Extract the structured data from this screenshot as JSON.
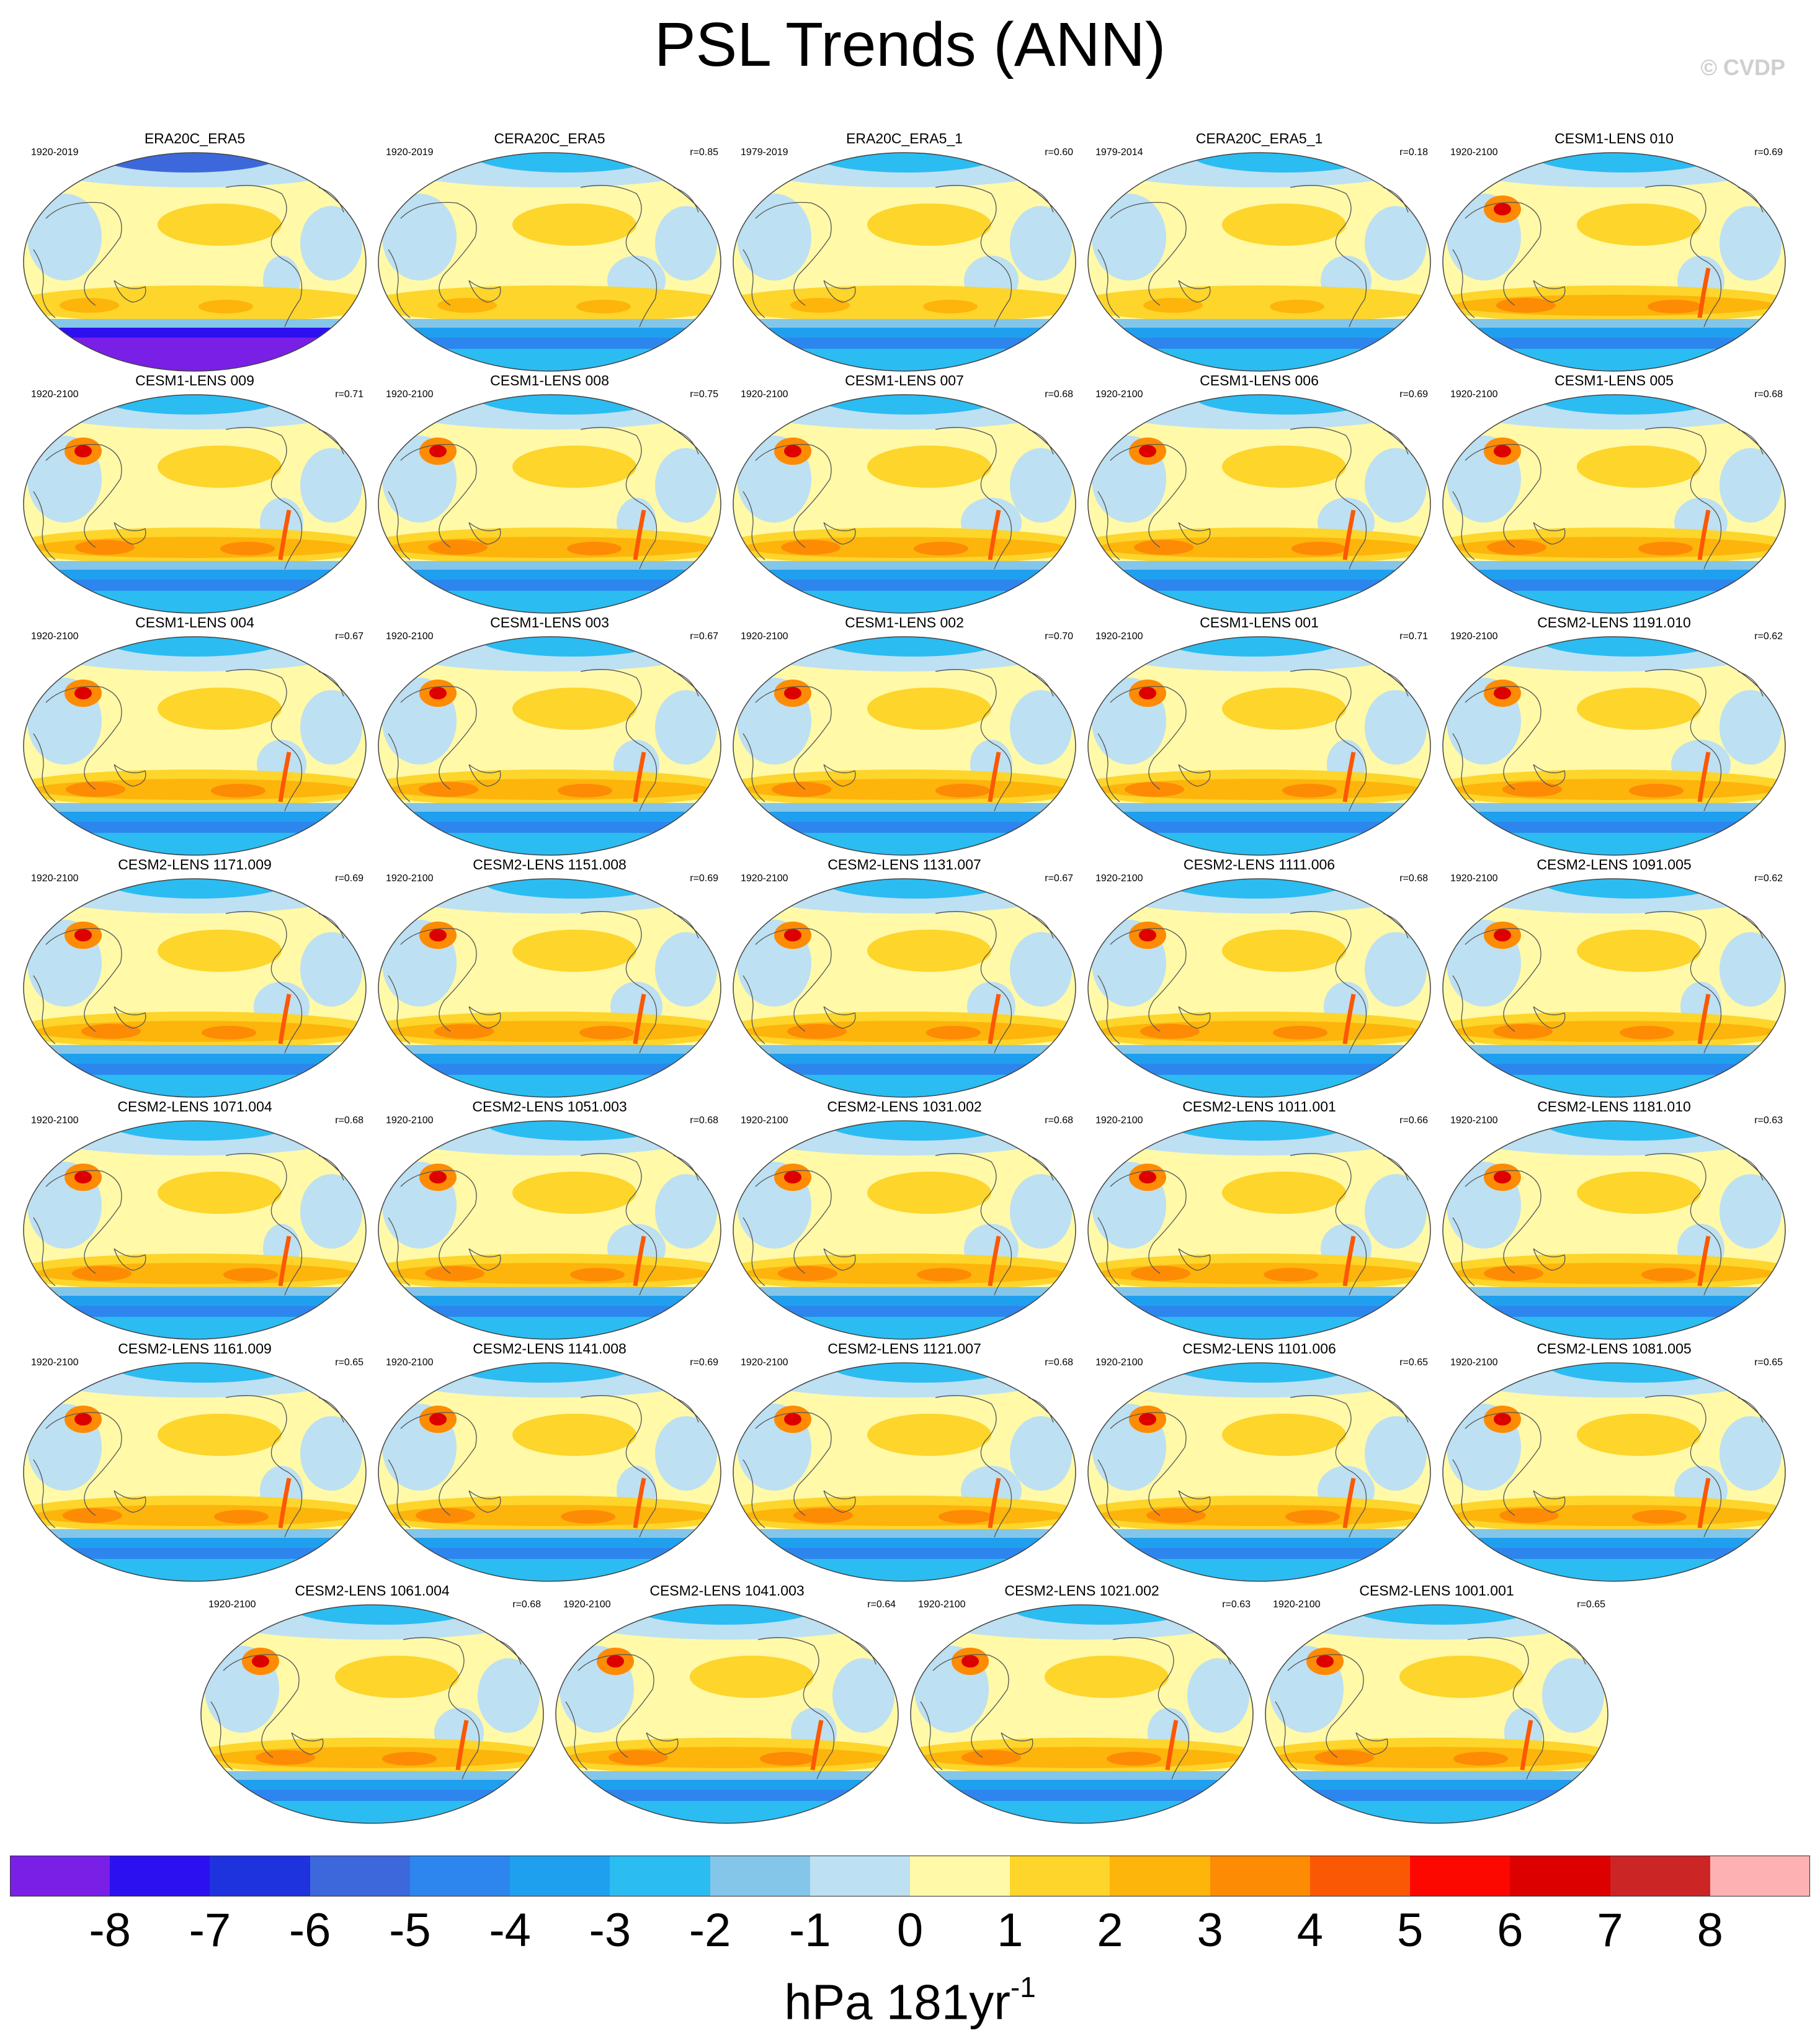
{
  "title": "PSL Trends (ANN)",
  "credit": "© CVDP",
  "units": {
    "base": "hPa 181yr",
    "exponent": "-1"
  },
  "colorbar": {
    "colors": [
      "#7a1fe6",
      "#2d10f0",
      "#1e33dd",
      "#3d68dc",
      "#2d86ee",
      "#1fa0ef",
      "#2bbcf2",
      "#84c6ea",
      "#bde0f2",
      "#fff9a8",
      "#fdd52b",
      "#fdb40b",
      "#fd8b04",
      "#fb5805",
      "#fd0800",
      "#dd0000",
      "#cc2525",
      "#fdb1b2"
    ],
    "labels": [
      "-8",
      "-7",
      "-6",
      "-5",
      "-4",
      "-3",
      "-2",
      "-1",
      "0",
      "1",
      "2",
      "3",
      "4",
      "5",
      "6",
      "7",
      "8"
    ]
  },
  "panels": [
    {
      "title": "ERA20C_ERA5",
      "period": "1920-2019",
      "r": ""
    },
    {
      "title": "CERA20C_ERA5",
      "period": "1920-2019",
      "r": "r=0.85"
    },
    {
      "title": "ERA20C_ERA5_1",
      "period": "1979-2019",
      "r": "r=0.60"
    },
    {
      "title": "CERA20C_ERA5_1",
      "period": "1979-2014",
      "r": "r=0.18"
    },
    {
      "title": "CESM1-LENS 010",
      "period": "1920-2100",
      "r": "r=0.69"
    },
    {
      "title": "CESM1-LENS 009",
      "period": "1920-2100",
      "r": "r=0.71"
    },
    {
      "title": "CESM1-LENS 008",
      "period": "1920-2100",
      "r": "r=0.75"
    },
    {
      "title": "CESM1-LENS 007",
      "period": "1920-2100",
      "r": "r=0.68"
    },
    {
      "title": "CESM1-LENS 006",
      "period": "1920-2100",
      "r": "r=0.69"
    },
    {
      "title": "CESM1-LENS 005",
      "period": "1920-2100",
      "r": "r=0.68"
    },
    {
      "title": "CESM1-LENS 004",
      "period": "1920-2100",
      "r": "r=0.67"
    },
    {
      "title": "CESM1-LENS 003",
      "period": "1920-2100",
      "r": "r=0.67"
    },
    {
      "title": "CESM1-LENS 002",
      "period": "1920-2100",
      "r": "r=0.70"
    },
    {
      "title": "CESM1-LENS 001",
      "period": "1920-2100",
      "r": "r=0.71"
    },
    {
      "title": "CESM2-LENS 1191.010",
      "period": "1920-2100",
      "r": "r=0.62"
    },
    {
      "title": "CESM2-LENS 1171.009",
      "period": "1920-2100",
      "r": "r=0.69"
    },
    {
      "title": "CESM2-LENS 1151.008",
      "period": "1920-2100",
      "r": "r=0.69"
    },
    {
      "title": "CESM2-LENS 1131.007",
      "period": "1920-2100",
      "r": "r=0.67"
    },
    {
      "title": "CESM2-LENS 1111.006",
      "period": "1920-2100",
      "r": "r=0.68"
    },
    {
      "title": "CESM2-LENS 1091.005",
      "period": "1920-2100",
      "r": "r=0.62"
    },
    {
      "title": "CESM2-LENS 1071.004",
      "period": "1920-2100",
      "r": "r=0.68"
    },
    {
      "title": "CESM2-LENS 1051.003",
      "period": "1920-2100",
      "r": "r=0.68"
    },
    {
      "title": "CESM2-LENS 1031.002",
      "period": "1920-2100",
      "r": "r=0.68"
    },
    {
      "title": "CESM2-LENS 1011.001",
      "period": "1920-2100",
      "r": "r=0.66"
    },
    {
      "title": "CESM2-LENS 1181.010",
      "period": "1920-2100",
      "r": "r=0.63"
    },
    {
      "title": "CESM2-LENS 1161.009",
      "period": "1920-2100",
      "r": "r=0.65"
    },
    {
      "title": "CESM2-LENS 1141.008",
      "period": "1920-2100",
      "r": "r=0.69"
    },
    {
      "title": "CESM2-LENS 1121.007",
      "period": "1920-2100",
      "r": "r=0.68"
    },
    {
      "title": "CESM2-LENS 1101.006",
      "period": "1920-2100",
      "r": "r=0.65"
    },
    {
      "title": "CESM2-LENS 1081.005",
      "period": "1920-2100",
      "r": "r=0.65"
    },
    {
      "title": "CESM2-LENS 1061.004",
      "period": "1920-2100",
      "r": "r=0.68"
    },
    {
      "title": "CESM2-LENS 1041.003",
      "period": "1920-2100",
      "r": "r=0.64"
    },
    {
      "title": "CESM2-LENS 1021.002",
      "period": "1920-2100",
      "r": "r=0.63"
    },
    {
      "title": "CESM2-LENS 1001.001",
      "period": "1920-2100",
      "r": "r=0.65"
    }
  ],
  "chart_data": {
    "type": "heatmap",
    "title": "PSL Trends (ANN)",
    "colorbar_range": [
      -8,
      8
    ],
    "colorbar_units": "hPa 181yr-1",
    "panel_count": 34,
    "projection_note": "global maps, Robinson-like projection, Pacific-centered",
    "pattern_observed": "Southern Ocean midlatitude band positive (2 to 4), Antarctic ring negative (-3 to -6), Arctic mostly negative (-1 to -3), Tibetan Plateau / Andes strongly positive"
  }
}
